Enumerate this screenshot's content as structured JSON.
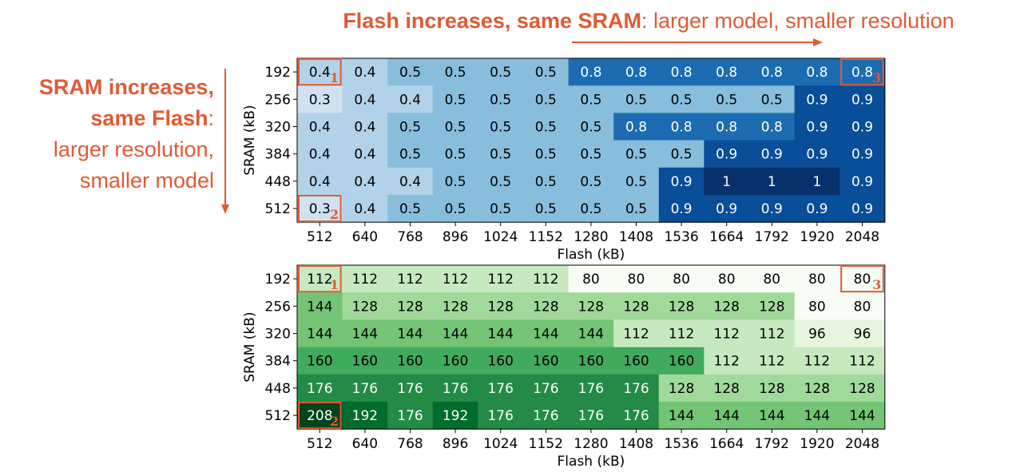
{
  "annotations": {
    "top_bold": "Flash increases, same SRAM",
    "top_rest": ": larger model, smaller resolution",
    "left_line1": "SRAM increases,",
    "left_line2_bold": "same Flash",
    "left_line2_rest": ":",
    "left_line3": "larger resolution,",
    "left_line4": "smaller model",
    "marker_labels": [
      "1",
      "2",
      "3"
    ],
    "accent_color": "#e05a33"
  },
  "chart_data": [
    {
      "type": "heatmap",
      "title": "",
      "xlabel": "Flash (kB)",
      "ylabel": "SRAM (kB)",
      "x": [
        "512",
        "640",
        "768",
        "896",
        "1024",
        "1152",
        "1280",
        "1408",
        "1536",
        "1664",
        "1792",
        "1920",
        "2048"
      ],
      "y": [
        "192",
        "256",
        "320",
        "384",
        "448",
        "512"
      ],
      "colormap": "Blues",
      "value_range": [
        0.3,
        1.0
      ],
      "values": [
        [
          0.4,
          0.4,
          0.5,
          0.5,
          0.5,
          0.5,
          0.8,
          0.8,
          0.8,
          0.8,
          0.8,
          0.8,
          0.8
        ],
        [
          0.3,
          0.4,
          0.4,
          0.5,
          0.5,
          0.5,
          0.5,
          0.5,
          0.5,
          0.5,
          0.5,
          0.9,
          0.9
        ],
        [
          0.4,
          0.4,
          0.5,
          0.5,
          0.5,
          0.5,
          0.5,
          0.8,
          0.8,
          0.8,
          0.8,
          0.9,
          0.9
        ],
        [
          0.4,
          0.4,
          0.5,
          0.5,
          0.5,
          0.5,
          0.5,
          0.5,
          0.5,
          0.9,
          0.9,
          0.9,
          0.9
        ],
        [
          0.4,
          0.4,
          0.4,
          0.5,
          0.5,
          0.5,
          0.5,
          0.5,
          0.9,
          1.0,
          1.0,
          1.0,
          0.9
        ],
        [
          0.3,
          0.4,
          0.5,
          0.5,
          0.5,
          0.5,
          0.5,
          0.5,
          0.9,
          0.9,
          0.9,
          0.9,
          0.9
        ]
      ],
      "highlights": [
        {
          "row": 0,
          "col": 0,
          "label": "1"
        },
        {
          "row": 5,
          "col": 0,
          "label": "2"
        },
        {
          "row": 0,
          "col": 12,
          "label": "3"
        }
      ]
    },
    {
      "type": "heatmap",
      "title": "",
      "xlabel": "Flash (kB)",
      "ylabel": "SRAM (kB)",
      "x": [
        "512",
        "640",
        "768",
        "896",
        "1024",
        "1152",
        "1280",
        "1408",
        "1536",
        "1664",
        "1792",
        "1920",
        "2048"
      ],
      "y": [
        "192",
        "256",
        "320",
        "384",
        "448",
        "512"
      ],
      "colormap": "Greens",
      "value_range": [
        80,
        208
      ],
      "values": [
        [
          112,
          112,
          112,
          112,
          112,
          112,
          80,
          80,
          80,
          80,
          80,
          80,
          80
        ],
        [
          144,
          128,
          128,
          128,
          128,
          128,
          128,
          128,
          128,
          128,
          128,
          80,
          80
        ],
        [
          144,
          144,
          144,
          144,
          144,
          144,
          144,
          112,
          112,
          112,
          112,
          96,
          96
        ],
        [
          160,
          160,
          160,
          160,
          160,
          160,
          160,
          160,
          160,
          112,
          112,
          112,
          112
        ],
        [
          176,
          176,
          176,
          176,
          176,
          176,
          176,
          176,
          128,
          128,
          128,
          128,
          128
        ],
        [
          208,
          192,
          176,
          192,
          176,
          176,
          176,
          176,
          144,
          144,
          144,
          144,
          144
        ]
      ],
      "highlights": [
        {
          "row": 0,
          "col": 0,
          "label": "1"
        },
        {
          "row": 5,
          "col": 0,
          "label": "2"
        },
        {
          "row": 0,
          "col": 12,
          "label": "3"
        }
      ]
    }
  ]
}
